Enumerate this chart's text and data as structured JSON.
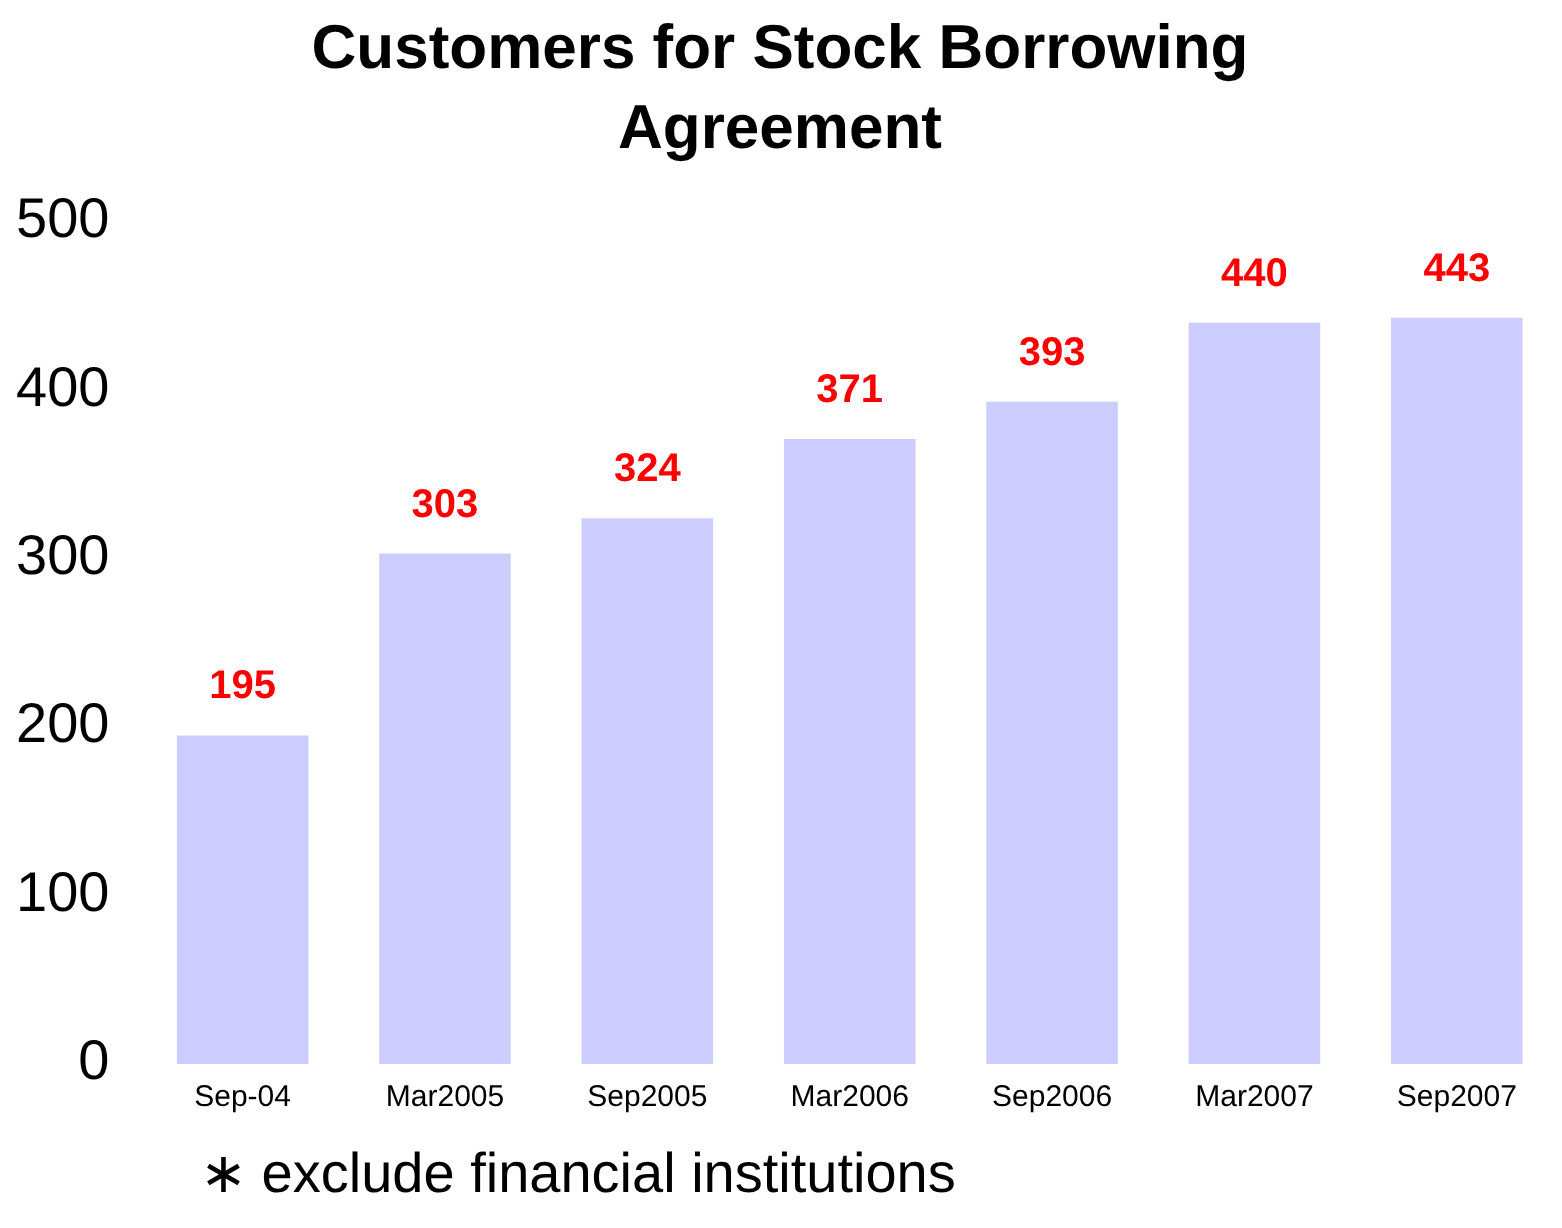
{
  "chart_data": {
    "type": "bar",
    "title": "Customers for Stock Borrowing Agreement",
    "categories": [
      "Sep-04",
      "Mar2005",
      "Sep2005",
      "Mar2006",
      "Sep2006",
      "Mar2007",
      "Sep2007"
    ],
    "values": [
      195,
      303,
      324,
      371,
      393,
      440,
      443
    ],
    "color": "#ccccff",
    "ylim": [
      0,
      500
    ],
    "yticks": [
      0,
      100,
      200,
      300,
      400,
      500
    ],
    "grid": false,
    "data_labels": true,
    "annotations": [
      "∗ exclude financial institutions"
    ]
  }
}
